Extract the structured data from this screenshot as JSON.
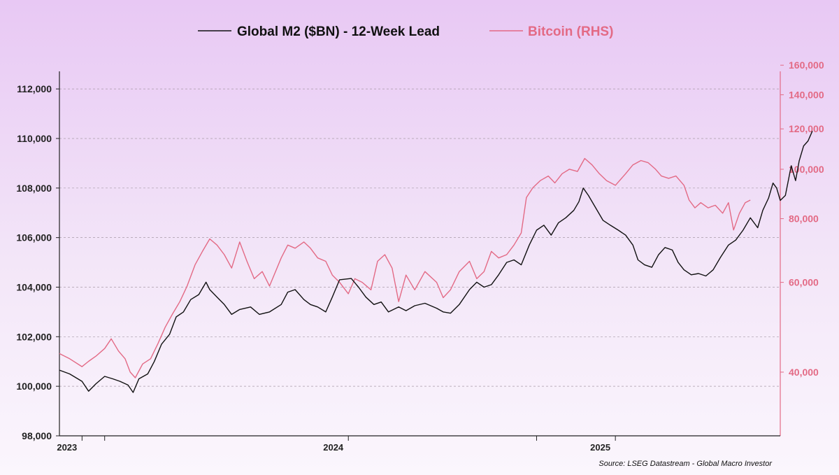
{
  "chart_data": {
    "type": "line",
    "legend_position": "top-center",
    "grid": true,
    "source": "Source: LSEG Datastream - Global Macro Investor",
    "x_axis": {
      "range": [
        "2022-12-01",
        "2025-08-15"
      ],
      "ticks": [
        {
          "date": "2023-01-01",
          "label": "2023"
        },
        {
          "date": "2024-01-01",
          "label": "2024"
        },
        {
          "date": "2025-01-01",
          "label": "2025"
        }
      ],
      "extra_tick_dates": [
        "2023-02-01",
        "2024-09-15"
      ]
    },
    "y_left": {
      "scale": "linear",
      "range": [
        98000,
        113500
      ],
      "ticks": [
        "98,000",
        "100,000",
        "102,000",
        "104,000",
        "106,000",
        "108,000",
        "110,000",
        "112,000"
      ],
      "tick_values": [
        98000,
        100000,
        102000,
        104000,
        106000,
        108000,
        110000,
        112000
      ]
    },
    "y_right": {
      "scale": "log",
      "range": [
        30000,
        170000
      ],
      "ticks": [
        "40,000",
        "60,000",
        "80,000",
        "100,000",
        "120,000",
        "140,000",
        "160,000"
      ],
      "tick_values": [
        40000,
        60000,
        80000,
        100000,
        120000,
        140000,
        160000
      ]
    },
    "series": [
      {
        "name": "Global M2 ($BN) - 12-Week Lead",
        "axis": "left",
        "color": "#111111",
        "points": [
          [
            "2022-12-01",
            100650
          ],
          [
            "2022-12-15",
            100500
          ],
          [
            "2023-01-01",
            100200
          ],
          [
            "2023-01-10",
            99800
          ],
          [
            "2023-01-20",
            100100
          ],
          [
            "2023-02-01",
            100400
          ],
          [
            "2023-02-12",
            100300
          ],
          [
            "2023-02-22",
            100200
          ],
          [
            "2023-03-05",
            100050
          ],
          [
            "2023-03-12",
            99750
          ],
          [
            "2023-03-20",
            100300
          ],
          [
            "2023-04-01",
            100500
          ],
          [
            "2023-04-10",
            101000
          ],
          [
            "2023-04-20",
            101700
          ],
          [
            "2023-05-01",
            102100
          ],
          [
            "2023-05-10",
            102800
          ],
          [
            "2023-05-20",
            103000
          ],
          [
            "2023-05-30",
            103500
          ],
          [
            "2023-06-10",
            103700
          ],
          [
            "2023-06-20",
            104200
          ],
          [
            "2023-06-25",
            103900
          ],
          [
            "2023-07-05",
            103600
          ],
          [
            "2023-07-15",
            103300
          ],
          [
            "2023-07-25",
            102900
          ],
          [
            "2023-08-05",
            103100
          ],
          [
            "2023-08-20",
            103200
          ],
          [
            "2023-09-01",
            102900
          ],
          [
            "2023-09-15",
            103000
          ],
          [
            "2023-10-01",
            103300
          ],
          [
            "2023-10-10",
            103800
          ],
          [
            "2023-10-20",
            103900
          ],
          [
            "2023-11-01",
            103500
          ],
          [
            "2023-11-10",
            103300
          ],
          [
            "2023-11-20",
            103200
          ],
          [
            "2023-12-01",
            103000
          ],
          [
            "2023-12-10",
            103600
          ],
          [
            "2023-12-20",
            104300
          ],
          [
            "2024-01-05",
            104350
          ],
          [
            "2024-01-15",
            104000
          ],
          [
            "2024-01-25",
            103600
          ],
          [
            "2024-02-05",
            103300
          ],
          [
            "2024-02-15",
            103400
          ],
          [
            "2024-02-25",
            103000
          ],
          [
            "2024-03-10",
            103200
          ],
          [
            "2024-03-20",
            103050
          ],
          [
            "2024-04-01",
            103250
          ],
          [
            "2024-04-15",
            103350
          ],
          [
            "2024-05-01",
            103150
          ],
          [
            "2024-05-10",
            103000
          ],
          [
            "2024-05-20",
            102950
          ],
          [
            "2024-06-01",
            103300
          ],
          [
            "2024-06-15",
            103900
          ],
          [
            "2024-06-25",
            104200
          ],
          [
            "2024-07-05",
            104000
          ],
          [
            "2024-07-15",
            104100
          ],
          [
            "2024-07-25",
            104500
          ],
          [
            "2024-08-05",
            105000
          ],
          [
            "2024-08-15",
            105100
          ],
          [
            "2024-08-25",
            104900
          ],
          [
            "2024-09-05",
            105700
          ],
          [
            "2024-09-15",
            106300
          ],
          [
            "2024-09-25",
            106500
          ],
          [
            "2024-10-05",
            106100
          ],
          [
            "2024-10-15",
            106600
          ],
          [
            "2024-10-25",
            106800
          ],
          [
            "2024-11-05",
            107100
          ],
          [
            "2024-11-12",
            107450
          ],
          [
            "2024-11-18",
            108000
          ],
          [
            "2024-11-25",
            107700
          ],
          [
            "2024-12-05",
            107200
          ],
          [
            "2024-12-15",
            106700
          ],
          [
            "2024-12-25",
            106500
          ],
          [
            "2025-01-05",
            106300
          ],
          [
            "2025-01-15",
            106100
          ],
          [
            "2025-01-25",
            105700
          ],
          [
            "2025-02-01",
            105100
          ],
          [
            "2025-02-10",
            104900
          ],
          [
            "2025-02-20",
            104800
          ],
          [
            "2025-03-01",
            105300
          ],
          [
            "2025-03-10",
            105600
          ],
          [
            "2025-03-20",
            105500
          ],
          [
            "2025-03-28",
            105000
          ],
          [
            "2025-04-05",
            104700
          ],
          [
            "2025-04-15",
            104500
          ],
          [
            "2025-04-25",
            104550
          ],
          [
            "2025-05-05",
            104450
          ],
          [
            "2025-05-15",
            104700
          ],
          [
            "2025-05-25",
            105200
          ],
          [
            "2025-06-05",
            105700
          ],
          [
            "2025-06-15",
            105900
          ],
          [
            "2025-06-25",
            106300
          ],
          [
            "2025-07-05",
            106800
          ],
          [
            "2025-07-15",
            106400
          ],
          [
            "2025-07-22",
            107100
          ],
          [
            "2025-07-30",
            107600
          ],
          [
            "2025-08-05",
            108200
          ],
          [
            "2025-08-10",
            108000
          ],
          [
            "2025-08-15",
            107500
          ],
          [
            "2025-08-22",
            107700
          ],
          [
            "2025-08-30",
            108900
          ],
          [
            "2025-09-05",
            108300
          ],
          [
            "2025-09-10",
            109100
          ],
          [
            "2025-09-16",
            109700
          ],
          [
            "2025-09-22",
            109900
          ],
          [
            "2025-09-28",
            110300
          ]
        ]
      },
      {
        "name": "Bitcoin (RHS)",
        "axis": "right",
        "color": "#e36a85",
        "points": [
          [
            "2022-12-01",
            43500
          ],
          [
            "2022-12-15",
            42500
          ],
          [
            "2023-01-01",
            41000
          ],
          [
            "2023-01-10",
            42000
          ],
          [
            "2023-01-20",
            43000
          ],
          [
            "2023-02-01",
            44500
          ],
          [
            "2023-02-10",
            46500
          ],
          [
            "2023-02-20",
            44000
          ],
          [
            "2023-03-01",
            42500
          ],
          [
            "2023-03-08",
            40000
          ],
          [
            "2023-03-15",
            39000
          ],
          [
            "2023-03-25",
            41500
          ],
          [
            "2023-04-05",
            42500
          ],
          [
            "2023-04-15",
            45500
          ],
          [
            "2023-04-25",
            49000
          ],
          [
            "2023-05-05",
            52000
          ],
          [
            "2023-05-15",
            55000
          ],
          [
            "2023-05-25",
            59000
          ],
          [
            "2023-06-05",
            65000
          ],
          [
            "2023-06-15",
            69000
          ],
          [
            "2023-06-25",
            73000
          ],
          [
            "2023-07-05",
            71000
          ],
          [
            "2023-07-15",
            68000
          ],
          [
            "2023-07-25",
            64000
          ],
          [
            "2023-08-05",
            72000
          ],
          [
            "2023-08-15",
            66000
          ],
          [
            "2023-08-25",
            61000
          ],
          [
            "2023-09-05",
            63000
          ],
          [
            "2023-09-15",
            59000
          ],
          [
            "2023-10-01",
            67000
          ],
          [
            "2023-10-10",
            71000
          ],
          [
            "2023-10-20",
            70000
          ],
          [
            "2023-11-01",
            72000
          ],
          [
            "2023-11-10",
            70000
          ],
          [
            "2023-11-20",
            67000
          ],
          [
            "2023-12-01",
            66000
          ],
          [
            "2023-12-10",
            62000
          ],
          [
            "2023-12-20",
            60000
          ],
          [
            "2024-01-01",
            57000
          ],
          [
            "2024-01-10",
            61000
          ],
          [
            "2024-01-20",
            60000
          ],
          [
            "2024-02-01",
            58000
          ],
          [
            "2024-02-10",
            66000
          ],
          [
            "2024-02-20",
            68000
          ],
          [
            "2024-03-01",
            64000
          ],
          [
            "2024-03-10",
            55000
          ],
          [
            "2024-03-20",
            62000
          ],
          [
            "2024-04-01",
            58000
          ],
          [
            "2024-04-15",
            63000
          ],
          [
            "2024-05-01",
            60000
          ],
          [
            "2024-05-10",
            56000
          ],
          [
            "2024-05-20",
            58000
          ],
          [
            "2024-06-01",
            63000
          ],
          [
            "2024-06-15",
            66000
          ],
          [
            "2024-06-25",
            61000
          ],
          [
            "2024-07-05",
            63000
          ],
          [
            "2024-07-15",
            69000
          ],
          [
            "2024-07-25",
            67000
          ],
          [
            "2024-08-05",
            68000
          ],
          [
            "2024-08-15",
            71000
          ],
          [
            "2024-08-25",
            75000
          ],
          [
            "2024-09-01",
            88000
          ],
          [
            "2024-09-10",
            92000
          ],
          [
            "2024-09-20",
            95000
          ],
          [
            "2024-10-01",
            97000
          ],
          [
            "2024-10-10",
            94000
          ],
          [
            "2024-10-20",
            98000
          ],
          [
            "2024-10-30",
            100000
          ],
          [
            "2024-11-10",
            99000
          ],
          [
            "2024-11-20",
            105000
          ],
          [
            "2024-11-30",
            102000
          ],
          [
            "2024-12-10",
            98000
          ],
          [
            "2024-12-20",
            95000
          ],
          [
            "2025-01-01",
            93000
          ],
          [
            "2025-01-15",
            98000
          ],
          [
            "2025-01-25",
            102000
          ],
          [
            "2025-02-05",
            104000
          ],
          [
            "2025-02-15",
            103000
          ],
          [
            "2025-02-25",
            100000
          ],
          [
            "2025-03-05",
            97000
          ],
          [
            "2025-03-15",
            96000
          ],
          [
            "2025-03-25",
            97000
          ],
          [
            "2025-04-05",
            93000
          ],
          [
            "2025-04-12",
            87000
          ],
          [
            "2025-04-20",
            84000
          ],
          [
            "2025-04-28",
            86000
          ],
          [
            "2025-05-08",
            84000
          ],
          [
            "2025-05-18",
            85000
          ],
          [
            "2025-05-28",
            82000
          ],
          [
            "2025-06-05",
            86000
          ],
          [
            "2025-06-12",
            76000
          ],
          [
            "2025-06-20",
            82000
          ],
          [
            "2025-06-28",
            86000
          ],
          [
            "2025-07-05",
            87000
          ]
        ]
      }
    ]
  }
}
